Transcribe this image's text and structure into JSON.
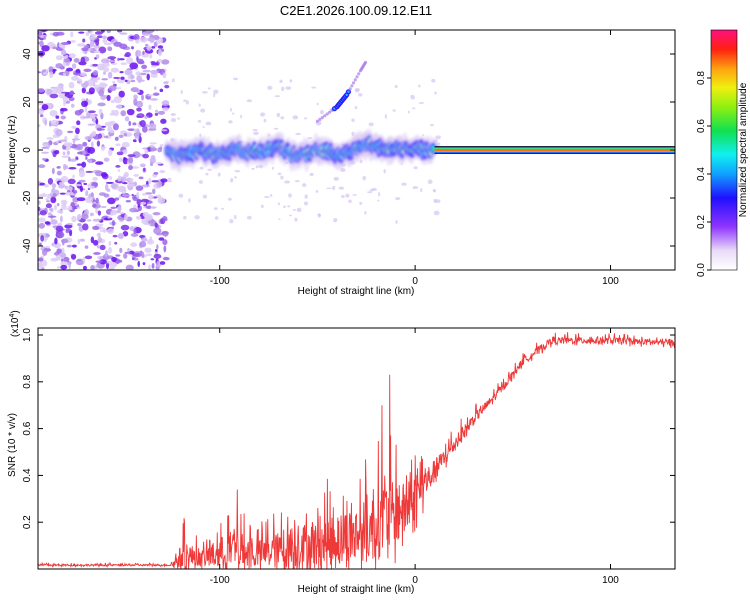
{
  "chart_data": [
    {
      "type": "heatmap",
      "title": "C2E1.2026.100.09.12.E11",
      "xlabel": "Height of straight line (km)",
      "ylabel": "Frequency (Hz)",
      "xlim": [
        -193,
        133
      ],
      "ylim": [
        -50,
        50
      ],
      "xticks": [
        -100,
        0,
        100
      ],
      "yticks": [
        -40,
        -20,
        0,
        20,
        40
      ],
      "colorbar": {
        "label": "Normalized spectral amplitude",
        "range": [
          0,
          1
        ],
        "ticks": [
          "0.0",
          "0.2",
          "0.4",
          "0.6",
          "0.8"
        ]
      },
      "features": {
        "noise_region_x": [
          -193,
          -127
        ],
        "signal_track": [
          [
            -127,
            -1
          ],
          [
            -120,
            -2
          ],
          [
            -110,
            0
          ],
          [
            -100,
            -2
          ],
          [
            -90,
            0
          ],
          [
            -80,
            -1
          ],
          [
            -70,
            1
          ],
          [
            -60,
            -3
          ],
          [
            -50,
            0
          ],
          [
            -40,
            -2
          ],
          [
            -30,
            1
          ],
          [
            -25,
            3
          ],
          [
            -20,
            2
          ],
          [
            -15,
            0
          ],
          [
            -10,
            1
          ],
          [
            0,
            0
          ],
          [
            10,
            0
          ],
          [
            133,
            0
          ]
        ],
        "side_branch": [
          [
            -50,
            12
          ],
          [
            -40,
            18
          ],
          [
            -35,
            23
          ],
          [
            -28,
            33
          ],
          [
            -25,
            37
          ]
        ],
        "saturated_line_x": [
          10,
          133
        ],
        "saturated_line_freq": 0
      }
    },
    {
      "type": "line",
      "xlabel": "Height of straight line (km)",
      "ylabel": "SNR (10 * v/v)",
      "yscale_label": "(x10",
      "yscale_exponent": "4",
      "xlim": [
        -193,
        133
      ],
      "ylim": [
        0,
        1.03
      ],
      "xticks": [
        -100,
        0,
        100
      ],
      "yticks": [
        0.2,
        0.4,
        0.6,
        0.8,
        1.0
      ],
      "series": [
        {
          "name": "SNR",
          "color": "#ef3838",
          "envelope": [
            {
              "x": -193,
              "base": 0.015,
              "amp": 0.01
            },
            {
              "x": -125,
              "base": 0.015,
              "amp": 0.01
            },
            {
              "x": -118,
              "base": 0.03,
              "amp": 0.18
            },
            {
              "x": -110,
              "base": 0.03,
              "amp": 0.08
            },
            {
              "x": -95,
              "base": 0.04,
              "amp": 0.22
            },
            {
              "x": -80,
              "base": 0.04,
              "amp": 0.15
            },
            {
              "x": -60,
              "base": 0.05,
              "amp": 0.25
            },
            {
              "x": -40,
              "base": 0.07,
              "amp": 0.3
            },
            {
              "x": -25,
              "base": 0.1,
              "amp": 0.35
            },
            {
              "x": -15,
              "base": 0.15,
              "amp": 0.4
            },
            {
              "x": -5,
              "base": 0.2,
              "amp": 0.3
            },
            {
              "x": 10,
              "base": 0.4,
              "amp": 0.12
            },
            {
              "x": 30,
              "base": 0.63,
              "amp": 0.06
            },
            {
              "x": 45,
              "base": 0.77,
              "amp": 0.04
            },
            {
              "x": 55,
              "base": 0.88,
              "amp": 0.04
            },
            {
              "x": 70,
              "base": 0.97,
              "amp": 0.04
            },
            {
              "x": 100,
              "base": 0.97,
              "amp": 0.035
            },
            {
              "x": 133,
              "base": 0.96,
              "amp": 0.035
            }
          ],
          "spikes": [
            {
              "x": -13,
              "y": 0.83
            },
            {
              "x": -17,
              "y": 0.7
            },
            {
              "x": -91,
              "y": 0.34
            },
            {
              "x": -118,
              "y": 0.2
            }
          ]
        }
      ]
    }
  ]
}
